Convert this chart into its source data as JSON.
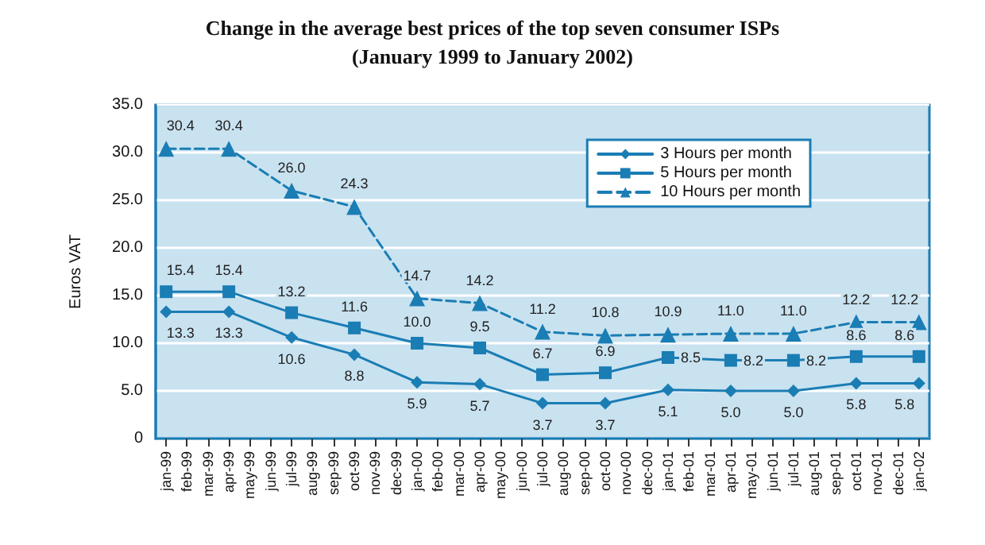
{
  "chart_data": {
    "type": "line",
    "title": "Change in the average best prices of the top seven consumer ISPs",
    "subtitle": "(January 1999 to January 2002)",
    "ylabel": "Euros VAT",
    "categories": [
      "jan-99",
      "feb-99",
      "mar-99",
      "apr-99",
      "may-99",
      "jun-99",
      "jul-99",
      "aug-99",
      "sep-99",
      "oct-99",
      "nov-99",
      "dec-99",
      "jan-00",
      "feb-00",
      "mar-00",
      "apr-00",
      "may-00",
      "jun-00",
      "jul-00",
      "aug-00",
      "sep-00",
      "oct-00",
      "nov-00",
      "dec-00",
      "jan-01",
      "feb-01",
      "mar-01",
      "apr-01",
      "may-01",
      "jun-01",
      "jul-01",
      "aug-01",
      "sep-01",
      "oct-01",
      "nov-01",
      "dec-01",
      "jan-02"
    ],
    "series": [
      {
        "name": "3 Hours per month",
        "color": "#1a7db4",
        "marker": "diamond",
        "line_style": "solid",
        "values": [
          13.3,
          null,
          null,
          13.3,
          null,
          null,
          10.6,
          null,
          null,
          8.8,
          null,
          null,
          5.9,
          null,
          null,
          5.7,
          null,
          null,
          3.7,
          null,
          null,
          3.7,
          null,
          null,
          5.1,
          null,
          null,
          5.0,
          null,
          null,
          5.0,
          null,
          null,
          5.8,
          null,
          null,
          5.8
        ],
        "value_labels": [
          "13.3",
          null,
          null,
          "13.3",
          null,
          null,
          "10.6",
          null,
          null,
          "8.8",
          null,
          null,
          "5.9",
          null,
          null,
          "5.7",
          null,
          null,
          "3.7",
          null,
          null,
          "3.7",
          null,
          null,
          "5.1",
          null,
          null,
          "5.0",
          null,
          null,
          "5.0",
          null,
          null,
          "5.8",
          null,
          null,
          "5.8"
        ]
      },
      {
        "name": "5 Hours per month",
        "color": "#1a7db4",
        "marker": "square",
        "line_style": "solid",
        "values": [
          15.4,
          null,
          null,
          15.4,
          null,
          null,
          13.2,
          null,
          null,
          11.6,
          null,
          null,
          10.0,
          null,
          null,
          9.5,
          null,
          null,
          6.7,
          null,
          null,
          6.9,
          null,
          null,
          8.5,
          null,
          null,
          8.2,
          null,
          null,
          8.2,
          null,
          null,
          8.6,
          null,
          null,
          8.6
        ],
        "value_labels": [
          "15.4",
          null,
          null,
          "15.4",
          null,
          null,
          "13.2",
          null,
          null,
          "11.6",
          null,
          null,
          "10.0",
          null,
          null,
          "9.5",
          null,
          null,
          "6.7",
          null,
          null,
          "6.9",
          null,
          null,
          "8.5",
          null,
          null,
          "8.2",
          null,
          null,
          "8.2",
          null,
          null,
          "8.6",
          null,
          null,
          "8.6"
        ]
      },
      {
        "name": "10 Hours per month",
        "color": "#1a7db4",
        "marker": "triangle",
        "line_style": "dashed",
        "values": [
          30.4,
          null,
          null,
          30.4,
          null,
          null,
          26.0,
          null,
          null,
          24.3,
          null,
          null,
          14.7,
          null,
          null,
          14.2,
          null,
          null,
          11.2,
          null,
          null,
          10.8,
          null,
          null,
          10.9,
          null,
          null,
          11.0,
          null,
          null,
          11.0,
          null,
          null,
          12.2,
          null,
          null,
          12.2
        ],
        "value_labels": [
          "30.4",
          null,
          null,
          "30.4",
          null,
          null,
          "26.0",
          null,
          null,
          "24.3",
          null,
          null,
          "14.7",
          null,
          null,
          "14.2",
          null,
          null,
          "11.2",
          null,
          null,
          "10.8",
          null,
          null,
          "10.9",
          null,
          null,
          "11.0",
          null,
          null,
          "11.0",
          null,
          null,
          "12.2",
          null,
          null,
          "12.2"
        ]
      }
    ],
    "ylim": [
      0,
      35
    ],
    "yticks": [
      0,
      {
        "value": 5,
        "label": "5.0"
      },
      {
        "value": 10,
        "label": "10.0"
      },
      {
        "value": 15,
        "label": "15.0"
      },
      {
        "value": 20,
        "label": "20.0"
      },
      {
        "value": 25,
        "label": "25.0"
      },
      {
        "value": 30,
        "label": "30.0"
      },
      {
        "value": 35,
        "label": "35.0"
      }
    ],
    "grid": "y",
    "legend": "top right"
  }
}
